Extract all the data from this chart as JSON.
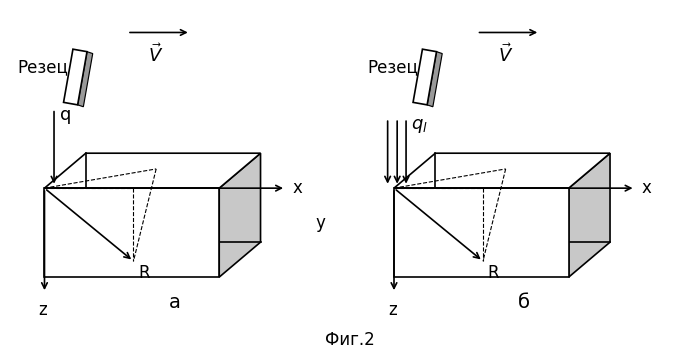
{
  "fig_title": "Фиг.2",
  "label_a": "а",
  "label_b": "б",
  "bg_color": "#ffffff",
  "text_rezec": "Резец",
  "text_x": "x",
  "text_y": "y",
  "text_z": "z",
  "text_q": "q",
  "text_ql": "$q_l$",
  "text_R": "R",
  "text_V": "$\\vec{V}$",
  "fontsize_labels": 12,
  "fontsize_title": 12,
  "fontsize_abc": 13
}
